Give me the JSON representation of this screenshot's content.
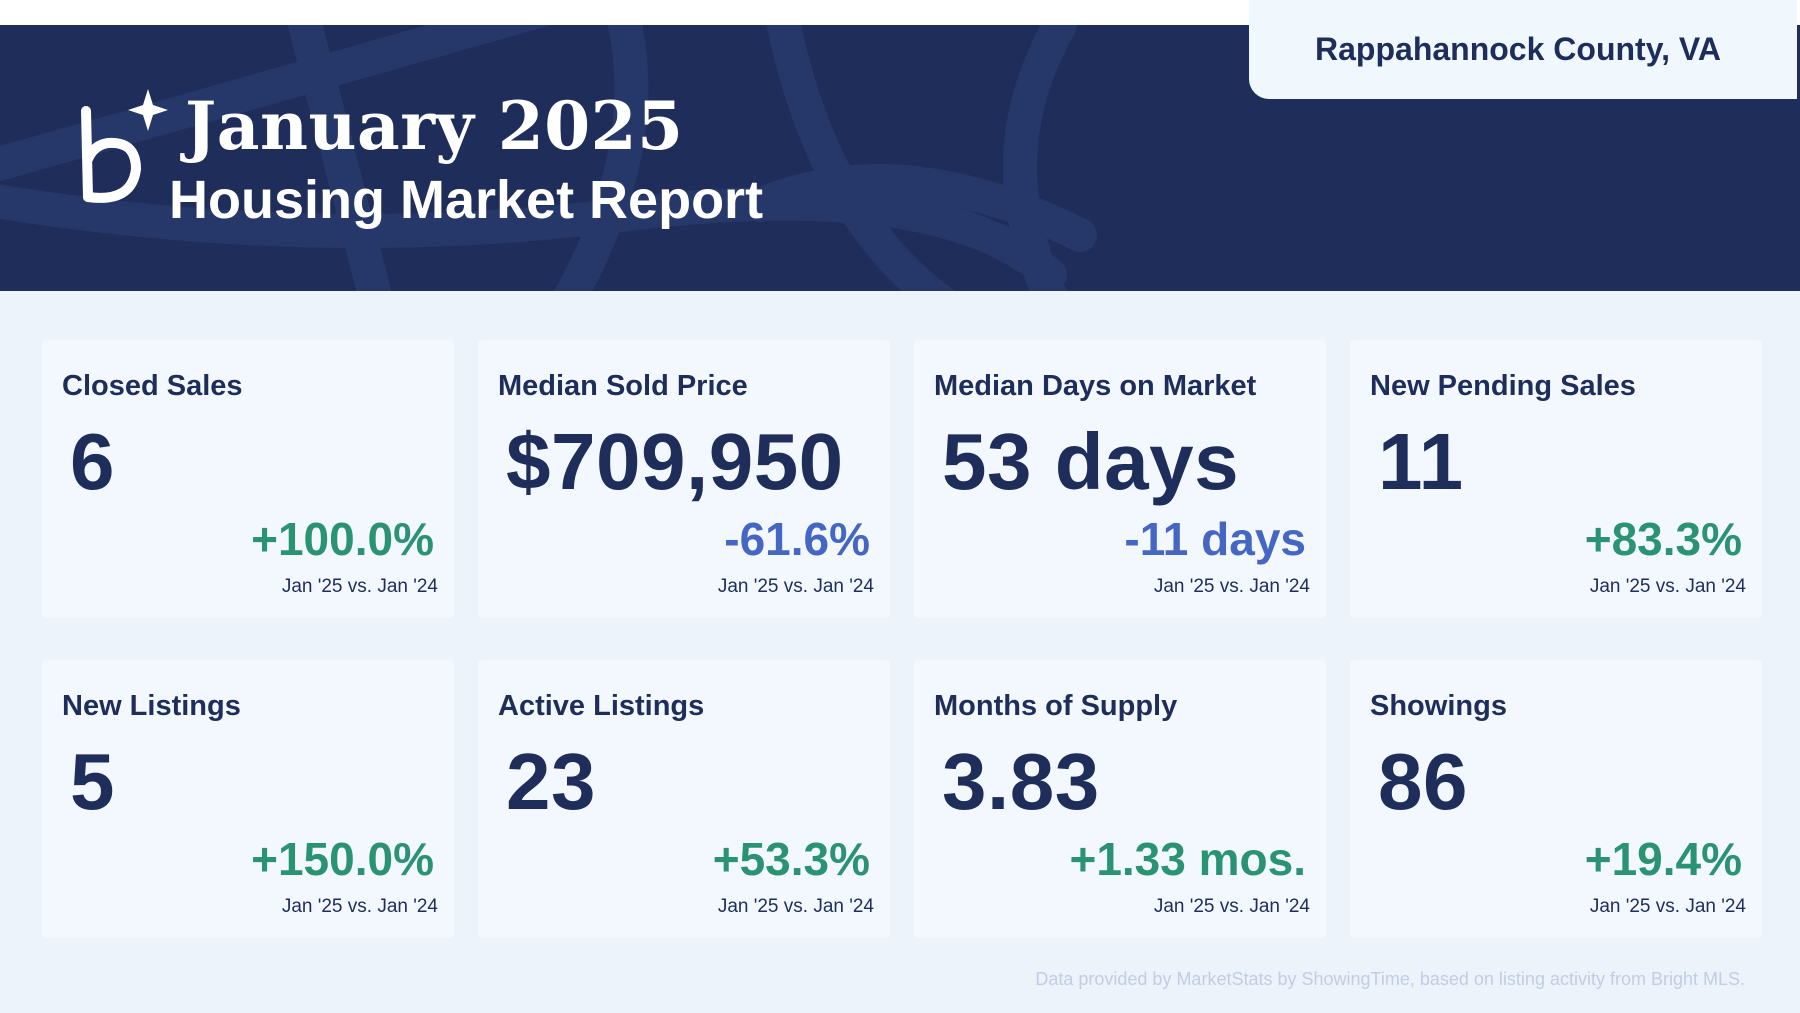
{
  "header": {
    "month": "January 2025",
    "subtitle": "Housing Market Report",
    "region": "Rappahannock County, VA",
    "background_color": "#1e2d5a",
    "logo_icon": "b-sparkle-logo-icon"
  },
  "metrics": [
    {
      "label": "Closed Sales",
      "value": "6",
      "change": "+100.0%",
      "direction": "up",
      "compare": "Jan '25 vs. Jan '24"
    },
    {
      "label": "Median Sold Price",
      "value": "$709,950",
      "change": "-61.6%",
      "direction": "down",
      "compare": "Jan '25 vs. Jan '24"
    },
    {
      "label": "Median Days on Market",
      "value": "53 days",
      "change": "-11 days",
      "direction": "down",
      "compare": "Jan '25 vs. Jan '24"
    },
    {
      "label": "New Pending Sales",
      "value": "11",
      "change": "+83.3%",
      "direction": "up",
      "compare": "Jan '25 vs. Jan '24"
    },
    {
      "label": "New Listings",
      "value": "5",
      "change": "+150.0%",
      "direction": "up",
      "compare": "Jan '25 vs. Jan '24"
    },
    {
      "label": "Active Listings",
      "value": "23",
      "change": "+53.3%",
      "direction": "up",
      "compare": "Jan '25 vs. Jan '24"
    },
    {
      "label": "Months of Supply",
      "value": "3.83",
      "change": "+1.33 mos.",
      "direction": "up",
      "compare": "Jan '25 vs. Jan '24"
    },
    {
      "label": "Showings",
      "value": "86",
      "change": "+19.4%",
      "direction": "up",
      "compare": "Jan '25 vs. Jan '24"
    }
  ],
  "colors": {
    "positive": "#2a9373",
    "negative": "#4566c2",
    "text": "#1e2d5a",
    "page_background": "#edf3fb",
    "card_background": "#f2f8fd"
  },
  "footnote": "Data provided by MarketStats by ShowingTime, based on listing activity from Bright MLS."
}
